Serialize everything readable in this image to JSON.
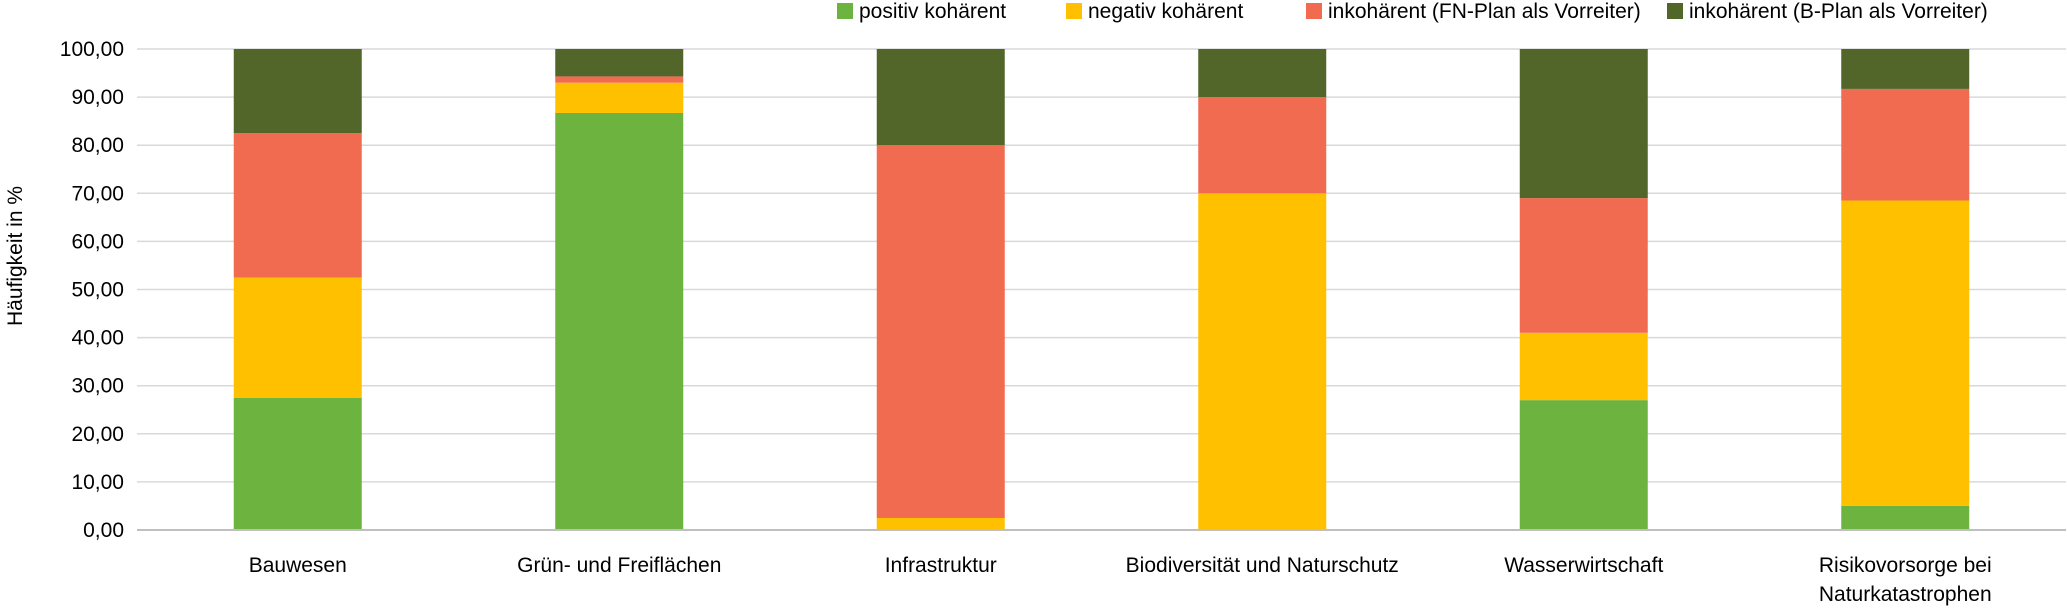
{
  "chart_data": {
    "type": "bar",
    "stacked": true,
    "title": "",
    "xlabel": "",
    "ylabel": "Häufigkeit in %",
    "ylim": [
      0,
      100
    ],
    "yticks": [
      "0,00",
      "10,00",
      "20,00",
      "30,00",
      "40,00",
      "50,00",
      "60,00",
      "70,00",
      "80,00",
      "90,00",
      "100,00"
    ],
    "grid": true,
    "legend_position": "top-right",
    "categories": [
      [
        "Bauwesen"
      ],
      [
        "Grün- und Freiflächen"
      ],
      [
        "Infrastruktur"
      ],
      [
        "Biodiversität und Naturschutz"
      ],
      [
        "Wasserwirtschaft"
      ],
      [
        "Risikovorsorge bei",
        "Naturkatastrophen"
      ]
    ],
    "series": [
      {
        "name": "positiv kohärent",
        "color": "#6DB33F",
        "values": [
          27.5,
          86.7,
          0,
          0,
          27.0,
          5.0
        ]
      },
      {
        "name": "negativ kohärent",
        "color": "#FFC000",
        "values": [
          25.0,
          6.3,
          2.5,
          70.0,
          14.0,
          63.5
        ]
      },
      {
        "name": "inkohärent (FN-Plan als Vorreiter)",
        "color": "#F06B50",
        "values": [
          30.0,
          1.3,
          77.5,
          20.0,
          28.0,
          23.2
        ]
      },
      {
        "name": "inkohärent (B-Plan als Vorreiter)",
        "color": "#526629",
        "values": [
          17.5,
          5.7,
          20.0,
          10.0,
          31.0,
          8.3
        ]
      }
    ],
    "colors": {
      "grid": "#D9D9D9",
      "axis": "#BFBFBF",
      "text": "#000000"
    }
  }
}
